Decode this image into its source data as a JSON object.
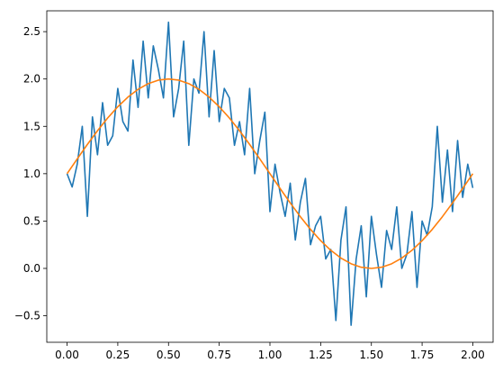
{
  "chart_data": {
    "type": "line",
    "title": "",
    "xlabel": "",
    "ylabel": "",
    "xlim": [
      -0.1,
      2.1
    ],
    "ylim": [
      -0.78,
      2.72
    ],
    "grid": false,
    "legend": "none",
    "x_ticks": [
      {
        "value": 0.0,
        "label": "0.00"
      },
      {
        "value": 0.25,
        "label": "0.25"
      },
      {
        "value": 0.5,
        "label": "0.50"
      },
      {
        "value": 0.75,
        "label": "0.75"
      },
      {
        "value": 1.0,
        "label": "1.00"
      },
      {
        "value": 1.25,
        "label": "1.25"
      },
      {
        "value": 1.5,
        "label": "1.50"
      },
      {
        "value": 1.75,
        "label": "1.75"
      },
      {
        "value": 2.0,
        "label": "2.00"
      }
    ],
    "y_ticks": [
      {
        "value": -0.5,
        "label": "−0.5"
      },
      {
        "value": 0.0,
        "label": "0.0"
      },
      {
        "value": 0.5,
        "label": "0.5"
      },
      {
        "value": 1.0,
        "label": "1.0"
      },
      {
        "value": 1.5,
        "label": "1.5"
      },
      {
        "value": 2.0,
        "label": "2.0"
      },
      {
        "value": 2.5,
        "label": "2.5"
      }
    ],
    "series": [
      {
        "color": "#1f77b4",
        "x": [
          0.0,
          0.025,
          0.05,
          0.075,
          0.1,
          0.125,
          0.15,
          0.175,
          0.2,
          0.225,
          0.25,
          0.275,
          0.3,
          0.325,
          0.35,
          0.375,
          0.4,
          0.425,
          0.45,
          0.475,
          0.5,
          0.525,
          0.55,
          0.575,
          0.6,
          0.625,
          0.65,
          0.675,
          0.7,
          0.725,
          0.75,
          0.775,
          0.8,
          0.825,
          0.85,
          0.875,
          0.9,
          0.925,
          0.95,
          0.975,
          1.0,
          1.025,
          1.05,
          1.075,
          1.1,
          1.125,
          1.15,
          1.175,
          1.2,
          1.225,
          1.25,
          1.275,
          1.3,
          1.325,
          1.35,
          1.375,
          1.4,
          1.425,
          1.45,
          1.475,
          1.5,
          1.525,
          1.55,
          1.575,
          1.6,
          1.625,
          1.65,
          1.675,
          1.7,
          1.725,
          1.75,
          1.775,
          1.8,
          1.825,
          1.85,
          1.875,
          1.9,
          1.925,
          1.95,
          1.975,
          2.0
        ],
        "y": [
          1.0,
          0.86,
          1.1,
          1.5,
          0.55,
          1.6,
          1.2,
          1.75,
          1.3,
          1.4,
          1.9,
          1.55,
          1.45,
          2.2,
          1.7,
          2.4,
          1.8,
          2.35,
          2.1,
          1.8,
          2.6,
          1.6,
          1.9,
          2.4,
          1.3,
          2.0,
          1.85,
          2.5,
          1.6,
          2.3,
          1.55,
          1.9,
          1.8,
          1.3,
          1.55,
          1.2,
          1.9,
          1.0,
          1.35,
          1.65,
          0.6,
          1.1,
          0.8,
          0.55,
          0.9,
          0.3,
          0.7,
          0.95,
          0.25,
          0.45,
          0.55,
          0.1,
          0.2,
          -0.55,
          0.3,
          0.65,
          -0.6,
          0.1,
          0.45,
          -0.3,
          0.55,
          0.15,
          -0.2,
          0.4,
          0.2,
          0.65,
          0.0,
          0.15,
          0.6,
          -0.2,
          0.5,
          0.35,
          0.65,
          1.5,
          0.7,
          1.25,
          0.6,
          1.35,
          0.75,
          1.1,
          0.85
        ]
      },
      {
        "color": "#ff7f0e",
        "x": [
          0.0,
          0.05,
          0.1,
          0.15,
          0.2,
          0.25,
          0.3,
          0.35,
          0.4,
          0.45,
          0.5,
          0.55,
          0.6,
          0.65,
          0.7,
          0.75,
          0.8,
          0.85,
          0.9,
          0.95,
          1.0,
          1.05,
          1.1,
          1.15,
          1.2,
          1.25,
          1.3,
          1.35,
          1.4,
          1.45,
          1.5,
          1.55,
          1.6,
          1.65,
          1.7,
          1.75,
          1.8,
          1.85,
          1.9,
          1.95,
          2.0
        ],
        "y": [
          1.0,
          1.156,
          1.309,
          1.454,
          1.588,
          1.707,
          1.809,
          1.891,
          1.951,
          1.988,
          2.0,
          1.988,
          1.951,
          1.891,
          1.809,
          1.707,
          1.588,
          1.454,
          1.309,
          1.156,
          1.0,
          0.844,
          0.691,
          0.546,
          0.412,
          0.293,
          0.191,
          0.109,
          0.049,
          0.012,
          0.0,
          0.012,
          0.049,
          0.109,
          0.191,
          0.293,
          0.412,
          0.546,
          0.691,
          0.844,
          1.0
        ]
      }
    ]
  }
}
